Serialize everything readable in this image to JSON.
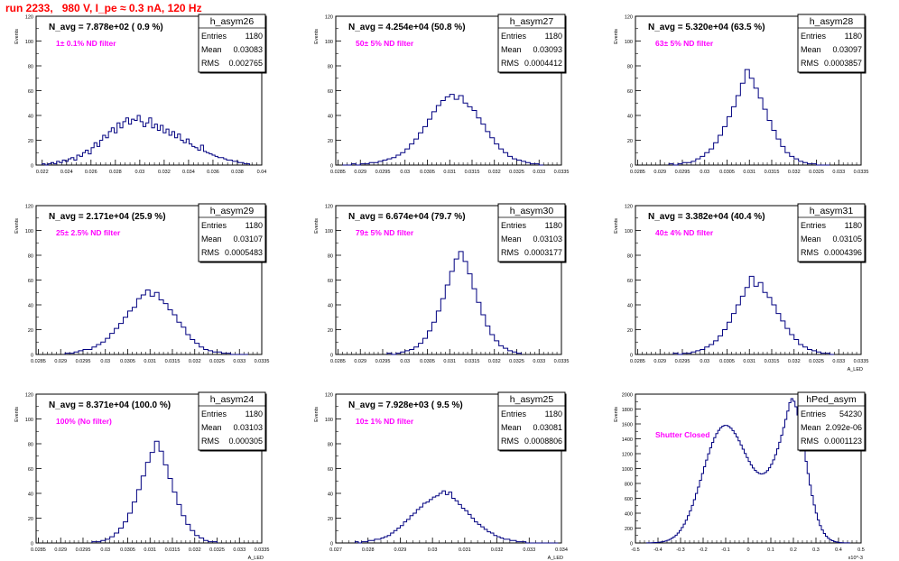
{
  "header": {
    "title": "run 2233,   980 V, I_pe ≈ 0.3 nA, 120 Hz"
  },
  "colors": {
    "hist": "#000080",
    "note": "#ff00ff",
    "title": "#ff0000",
    "axis": "#000000"
  },
  "stats_labels": {
    "entries": "Entries",
    "mean": "Mean",
    "rms": "RMS"
  },
  "chart_data": [
    {
      "type": "histogram",
      "name": "h_asym26",
      "nav_label": "N_avg = 7.878e+02 ( 0.9 %)",
      "note": "1± 0.1% ND filter",
      "stats": {
        "entries": "1180",
        "mean": "0.03083",
        "rms": "0.002765"
      },
      "ylabel": "Events",
      "xlabel": "",
      "xlim": [
        0.0215,
        0.04
      ],
      "ylim": [
        0,
        120
      ],
      "xticks": [
        "0.022",
        "0.024",
        "0.026",
        "0.028",
        "0.03",
        "0.032",
        "0.034",
        "0.036",
        "0.038",
        "0.04"
      ],
      "yticks": [
        "0",
        "20",
        "40",
        "60",
        "80",
        "100",
        "120"
      ],
      "bins": {
        "x0": 0.022,
        "x1": 0.039,
        "counts": [
          1,
          0,
          1,
          2,
          1,
          3,
          2,
          4,
          3,
          5,
          6,
          4,
          8,
          7,
          10,
          12,
          9,
          14,
          18,
          15,
          20,
          24,
          22,
          27,
          30,
          26,
          34,
          30,
          35,
          38,
          33,
          37,
          36,
          40,
          35,
          31,
          34,
          38,
          30,
          33,
          28,
          32,
          26,
          29,
          24,
          27,
          22,
          25,
          20,
          18,
          21,
          17,
          15,
          14,
          12,
          16,
          11,
          10,
          9,
          8,
          7,
          6,
          6,
          5,
          4,
          4,
          3,
          3,
          2,
          2,
          1,
          1
        ]
      }
    },
    {
      "type": "histogram",
      "name": "h_asym27",
      "nav_label": "N_avg = 4.254e+04 (50.8 %)",
      "note": "50± 5% ND filter",
      "stats": {
        "entries": "1180",
        "mean": "0.03093",
        "rms": "0.0004412"
      },
      "ylabel": "Events",
      "xlabel": "",
      "xlim": [
        0.02845,
        0.0335
      ],
      "ylim": [
        0,
        120
      ],
      "xticks": [
        "0.0285",
        "0.029",
        "0.0295",
        "0.03",
        "0.0305",
        "0.031",
        "0.0315",
        "0.032",
        "0.0325",
        "0.033",
        "0.0335"
      ],
      "yticks": [
        "0",
        "20",
        "40",
        "60",
        "80",
        "100",
        "120"
      ],
      "bins": {
        "x0": 0.0286,
        "x1": 0.0331,
        "counts": [
          0,
          0,
          1,
          0,
          1,
          1,
          2,
          2,
          3,
          4,
          5,
          6,
          8,
          10,
          13,
          17,
          21,
          26,
          31,
          37,
          43,
          48,
          52,
          55,
          57,
          53,
          56,
          50,
          47,
          44,
          38,
          33,
          27,
          22,
          17,
          13,
          10,
          7,
          5,
          4,
          3,
          2,
          1,
          1,
          0
        ]
      }
    },
    {
      "type": "histogram",
      "name": "h_asym28",
      "nav_label": "N_avg = 5.320e+04 (63.5 %)",
      "note": "63± 5% ND filter",
      "stats": {
        "entries": "1180",
        "mean": "0.03097",
        "rms": "0.0003857"
      },
      "ylabel": "Events",
      "xlabel": "",
      "xlim": [
        0.02845,
        0.0335
      ],
      "ylim": [
        0,
        120
      ],
      "xticks": [
        "0.0285",
        "0.029",
        "0.0295",
        "0.03",
        "0.0305",
        "0.031",
        "0.0315",
        "0.032",
        "0.0325",
        "0.033",
        "0.0335"
      ],
      "yticks": [
        "0",
        "20",
        "40",
        "60",
        "80",
        "100",
        "120"
      ],
      "bins": {
        "x0": 0.0292,
        "x1": 0.0328,
        "counts": [
          1,
          0,
          1,
          2,
          2,
          3,
          5,
          7,
          10,
          13,
          18,
          24,
          31,
          39,
          47,
          56,
          66,
          77,
          70,
          62,
          54,
          45,
          36,
          28,
          21,
          15,
          10,
          7,
          5,
          3,
          2,
          1,
          1,
          0,
          0,
          0
        ]
      }
    },
    {
      "type": "histogram",
      "name": "h_asym29",
      "nav_label": "N_avg = 2.171e+04 (25.9 %)",
      "note": "25± 2.5% ND filter",
      "stats": {
        "entries": "1180",
        "mean": "0.03107",
        "rms": "0.0005483"
      },
      "ylabel": "Events",
      "xlabel": "",
      "xlim": [
        0.02845,
        0.0335
      ],
      "ylim": [
        0,
        120
      ],
      "xticks": [
        "0.0285",
        "0.029",
        "0.0295",
        "0.03",
        "0.0305",
        "0.031",
        "0.0315",
        "0.032",
        "0.0325",
        "0.033",
        "0.0335"
      ],
      "yticks": [
        "0",
        "20",
        "40",
        "60",
        "80",
        "100",
        "120"
      ],
      "bins": {
        "x0": 0.0291,
        "x1": 0.0332,
        "counts": [
          1,
          1,
          2,
          3,
          4,
          4,
          6,
          8,
          10,
          13,
          17,
          21,
          25,
          30,
          35,
          38,
          45,
          48,
          52,
          47,
          50,
          44,
          41,
          36,
          32,
          26,
          22,
          16,
          12,
          9,
          6,
          4,
          3,
          2,
          2,
          1,
          1,
          0,
          0,
          0,
          0
        ]
      }
    },
    {
      "type": "histogram",
      "name": "h_asym30",
      "nav_label": "N_avg = 6.674e+04 (79.7 %)",
      "note": "79± 5% ND filter",
      "stats": {
        "entries": "1180",
        "mean": "0.03103",
        "rms": "0.0003177"
      },
      "ylabel": "Events",
      "xlabel": "",
      "xlim": [
        0.02845,
        0.0335
      ],
      "ylim": [
        0,
        120
      ],
      "xticks": [
        "0.0285",
        "0.029",
        "0.0295",
        "0.03",
        "0.0305",
        "0.031",
        "0.0315",
        "0.032",
        "0.0325",
        "0.033",
        "0.0335"
      ],
      "yticks": [
        "0",
        "20",
        "40",
        "60",
        "80",
        "100",
        "120"
      ],
      "bins": {
        "x0": 0.0296,
        "x1": 0.0326,
        "counts": [
          1,
          0,
          1,
          2,
          3,
          4,
          6,
          9,
          13,
          19,
          26,
          35,
          45,
          56,
          67,
          77,
          83,
          75,
          65,
          53,
          42,
          32,
          23,
          16,
          11,
          7,
          5,
          3,
          2,
          1
        ]
      }
    },
    {
      "type": "histogram",
      "name": "h_asym31",
      "nav_label": "N_avg = 3.382e+04 (40.4 %)",
      "note": "40± 4% ND filter",
      "stats": {
        "entries": "1180",
        "mean": "0.03105",
        "rms": "0.0004396"
      },
      "ylabel": "Events",
      "xlabel": "A_LED",
      "xlim": [
        0.02845,
        0.0335
      ],
      "ylim": [
        0,
        120
      ],
      "xticks": [
        "0.0285",
        "0.029",
        "0.0295",
        "0.03",
        "0.0305",
        "0.031",
        "0.0315",
        "0.032",
        "0.0325",
        "0.033",
        "0.0335"
      ],
      "yticks": [
        "0",
        "20",
        "40",
        "60",
        "80",
        "100",
        "120"
      ],
      "bins": {
        "x0": 0.0293,
        "x1": 0.0329,
        "counts": [
          1,
          0,
          1,
          1,
          2,
          3,
          4,
          6,
          8,
          11,
          15,
          20,
          26,
          33,
          40,
          47,
          54,
          63,
          55,
          58,
          50,
          46,
          40,
          33,
          27,
          21,
          16,
          12,
          8,
          6,
          4,
          3,
          2,
          1,
          1,
          0
        ]
      }
    },
    {
      "type": "histogram",
      "name": "h_asym24",
      "nav_label": "N_avg = 8.371e+04 (100.0 %)",
      "note": "100% (No filter)",
      "stats": {
        "entries": "1180",
        "mean": "0.03103",
        "rms": "0.000305"
      },
      "ylabel": "Events",
      "xlabel": "A_LED",
      "xlim": [
        0.02845,
        0.0335
      ],
      "ylim": [
        0,
        120
      ],
      "xticks": [
        "0.0285",
        "0.029",
        "0.0295",
        "0.03",
        "0.0305",
        "0.031",
        "0.0315",
        "0.032",
        "0.0325",
        "0.033",
        "0.0335"
      ],
      "yticks": [
        "0",
        "20",
        "40",
        "60",
        "80",
        "100",
        "120"
      ],
      "bins": {
        "x0": 0.0297,
        "x1": 0.0325,
        "counts": [
          1,
          1,
          2,
          3,
          5,
          8,
          12,
          17,
          24,
          33,
          43,
          54,
          65,
          73,
          82,
          74,
          63,
          52,
          41,
          31,
          22,
          15,
          10,
          6,
          4,
          2,
          1,
          1
        ]
      }
    },
    {
      "type": "histogram",
      "name": "h_asym25",
      "nav_label": "N_avg = 7.928e+03 ( 9.5 %)",
      "note": "10± 1% ND filter",
      "stats": {
        "entries": "1180",
        "mean": "0.03081",
        "rms": "0.0008806"
      },
      "ylabel": "Events",
      "xlabel": "A_LED",
      "xlim": [
        0.027,
        0.034
      ],
      "ylim": [
        0,
        120
      ],
      "xticks": [
        "0.027",
        "0.028",
        "0.029",
        "0.03",
        "0.031",
        "0.032",
        "0.033",
        "0.034"
      ],
      "yticks": [
        "0",
        "20",
        "40",
        "60",
        "80",
        "100",
        "120"
      ],
      "bins": {
        "x0": 0.0276,
        "x1": 0.0339,
        "counts": [
          1,
          0,
          1,
          1,
          2,
          2,
          3,
          3,
          4,
          5,
          6,
          8,
          10,
          12,
          14,
          17,
          19,
          22,
          24,
          27,
          29,
          32,
          33,
          35,
          37,
          38,
          40,
          42,
          39,
          41,
          36,
          34,
          31,
          28,
          26,
          23,
          20,
          17,
          15,
          13,
          11,
          9,
          8,
          6,
          5,
          4,
          3,
          3,
          2,
          2,
          1,
          1,
          1,
          0,
          0,
          0,
          0,
          0,
          0,
          0,
          0,
          0,
          0
        ]
      }
    },
    {
      "type": "histogram",
      "name": "hPed_asym",
      "nav_label": "",
      "note": "Shutter Closed",
      "stats": {
        "entries": "54230",
        "mean": "2.092e-06",
        "rms": "0.0001123"
      },
      "ylabel": "Events",
      "xlabel": "x10^-3",
      "xlim": [
        -0.5,
        0.5
      ],
      "ylim": [
        0,
        2000
      ],
      "xticks": [
        "-0.5",
        "-0.4",
        "-0.3",
        "-0.2",
        "-0.1",
        "0",
        "0.1",
        "0.2",
        "0.3",
        "0.4",
        "0.5"
      ],
      "yticks": [
        "0",
        "200",
        "400",
        "600",
        "800",
        "1000",
        "1200",
        "1400",
        "1600",
        "1800",
        "2000"
      ],
      "bins": {
        "x0": -0.45,
        "x1": 0.45,
        "counts": [
          1,
          2,
          3,
          4,
          6,
          8,
          11,
          15,
          20,
          27,
          36,
          48,
          63,
          82,
          105,
          133,
          167,
          207,
          253,
          306,
          366,
          432,
          504,
          582,
          665,
          752,
          842,
          933,
          1024,
          1113,
          1199,
          1279,
          1351,
          1415,
          1470,
          1514,
          1548,
          1570,
          1580,
          1578,
          1565,
          1542,
          1510,
          1470,
          1424,
          1372,
          1317,
          1260,
          1203,
          1148,
          1096,
          1049,
          1008,
          975,
          950,
          934,
          928,
          932,
          947,
          973,
          1010,
          1058,
          1117,
          1186,
          1265,
          1353,
          1449,
          1552,
          1660,
          1772,
          1885,
          1940,
          1905,
          1830,
          1720,
          1585,
          1430,
          1265,
          1097,
          933,
          778,
          636,
          510,
          401,
          309,
          234,
          174,
          127,
          91,
          64,
          44,
          30,
          20,
          13,
          8,
          5,
          3,
          2,
          1,
          1
        ]
      }
    }
  ]
}
